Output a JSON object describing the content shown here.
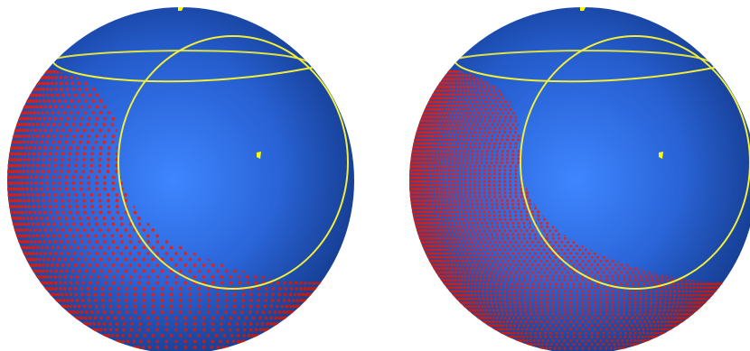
{
  "figure": {
    "panels": [
      {
        "id": "left",
        "sphere_color": "#2e67d8",
        "point_color": "#e2231a",
        "curve_color": "#ffff33",
        "marker_color": "#ffff00",
        "point_density": "coarse"
      },
      {
        "id": "right",
        "sphere_color": "#2e67d8",
        "point_color": "#e2231a",
        "curve_color": "#ffff33",
        "marker_color": "#ffff00",
        "point_density": "fine"
      }
    ]
  }
}
